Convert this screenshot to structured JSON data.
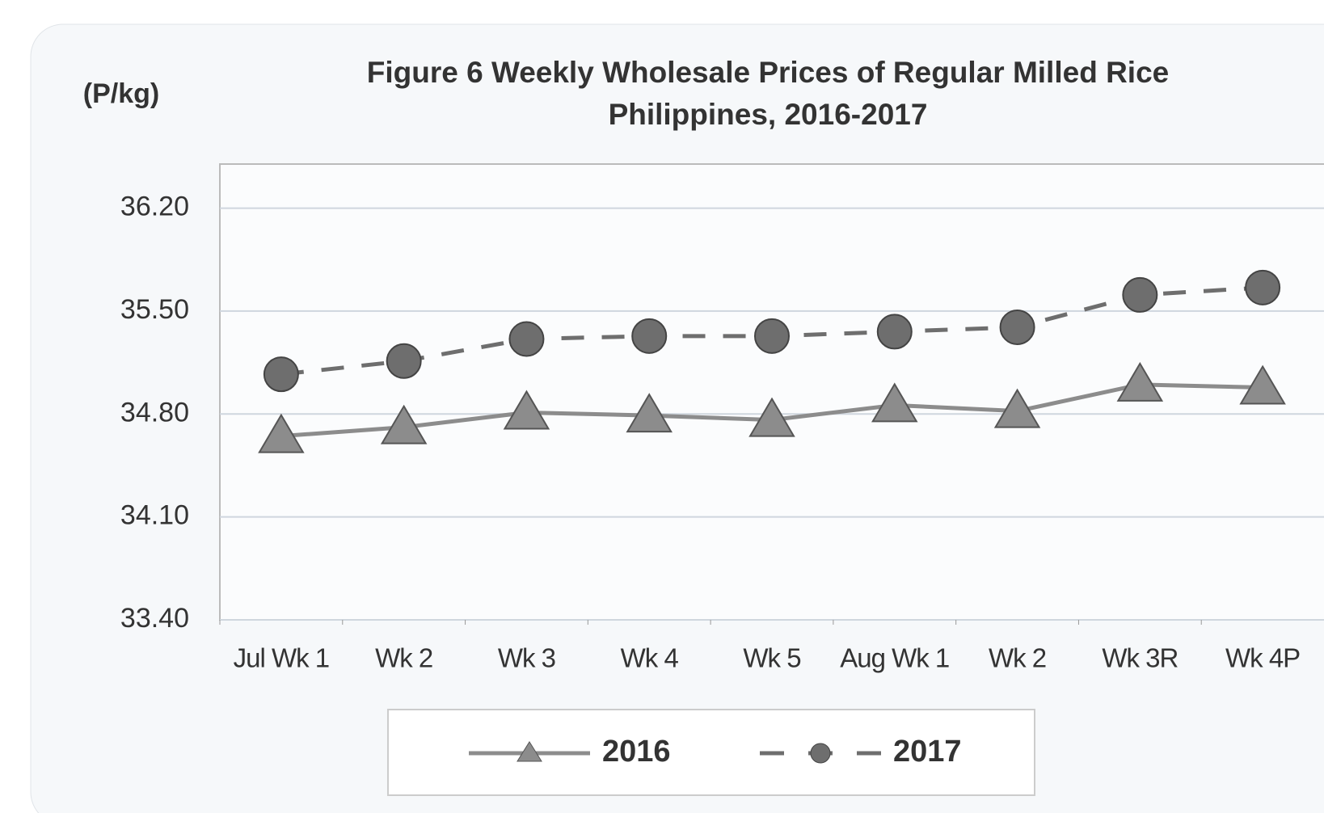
{
  "chart_data": {
    "type": "line",
    "title": "Figure 6  Weekly Wholesale Prices of Regular Milled Rice",
    "subtitle": "Philippines, 2016-2017",
    "y_label": "(P/kg)",
    "categories": [
      "Jul Wk 1",
      "Wk 2",
      "Wk 3",
      "Wk 4",
      "Wk 5",
      "Aug Wk 1",
      "Wk 2",
      "Wk 3R",
      "Wk 4P"
    ],
    "series": [
      {
        "name": "2016",
        "color": "#8c8c8c",
        "marker": "triangle",
        "dashed": false,
        "values": [
          34.65,
          34.71,
          34.81,
          34.79,
          34.76,
          34.86,
          34.82,
          35.0,
          34.98
        ]
      },
      {
        "name": "2017",
        "color": "#6e6e6e",
        "marker": "circle",
        "dashed": true,
        "values": [
          35.07,
          35.16,
          35.31,
          35.33,
          35.33,
          35.36,
          35.39,
          35.61,
          35.66
        ]
      }
    ],
    "ylim": [
      33.4,
      36.5
    ],
    "yticks": [
      {
        "value": 33.4,
        "label": "33.40"
      },
      {
        "value": 34.1,
        "label": "34.10"
      },
      {
        "value": 34.8,
        "label": "34.80"
      },
      {
        "value": 35.5,
        "label": "35.50"
      },
      {
        "value": 36.2,
        "label": "36.20"
      }
    ],
    "grid": true,
    "legend": "bottom"
  }
}
